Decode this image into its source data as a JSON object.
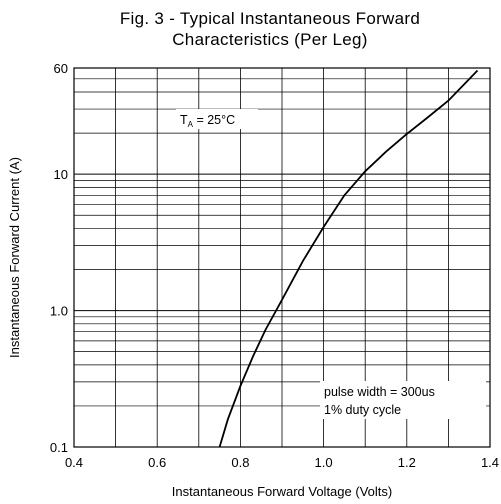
{
  "chart_data": {
    "type": "line",
    "title": [
      "Fig. 3 - Typical Instantaneous Forward",
      "Characteristics (Per Leg)"
    ],
    "xlabel": "Instantaneous Forward Voltage (Volts)",
    "ylabel": "Instantaneous Forward Current (A)",
    "xlim": [
      0.4,
      1.4
    ],
    "ylim": [
      0.1,
      60
    ],
    "yscale": "log",
    "grid": true,
    "x_ticks": [
      {
        "value": 0.4,
        "label": "0.4"
      },
      {
        "value": 0.6,
        "label": "0.6"
      },
      {
        "value": 0.8,
        "label": "0.8"
      },
      {
        "value": 1.0,
        "label": "1.0"
      },
      {
        "value": 1.2,
        "label": "1.2"
      },
      {
        "value": 1.4,
        "label": "1.4"
      }
    ],
    "y_ticks": [
      {
        "value": 0.1,
        "label": "0.1"
      },
      {
        "value": 1.0,
        "label": "1.0"
      },
      {
        "value": 10,
        "label": "10"
      },
      {
        "value": 60,
        "label": "60"
      }
    ],
    "series": [
      {
        "x": [
          0.75,
          0.77,
          0.8,
          0.83,
          0.86,
          0.9,
          0.95,
          1.0,
          1.05,
          1.1,
          1.15,
          1.2,
          1.25,
          1.3,
          1.37
        ],
        "y": [
          0.1,
          0.16,
          0.28,
          0.46,
          0.72,
          1.2,
          2.3,
          4.1,
          7.0,
          10.5,
          14.6,
          19.7,
          26.0,
          34.6,
          57.5
        ]
      }
    ],
    "annotations": {
      "temperature": {
        "prefix": "T",
        "subscript": "A",
        "value": " = 25",
        "unit": "°C"
      },
      "pulse": [
        "pulse width = 300us",
        "1% duty cycle"
      ]
    }
  }
}
